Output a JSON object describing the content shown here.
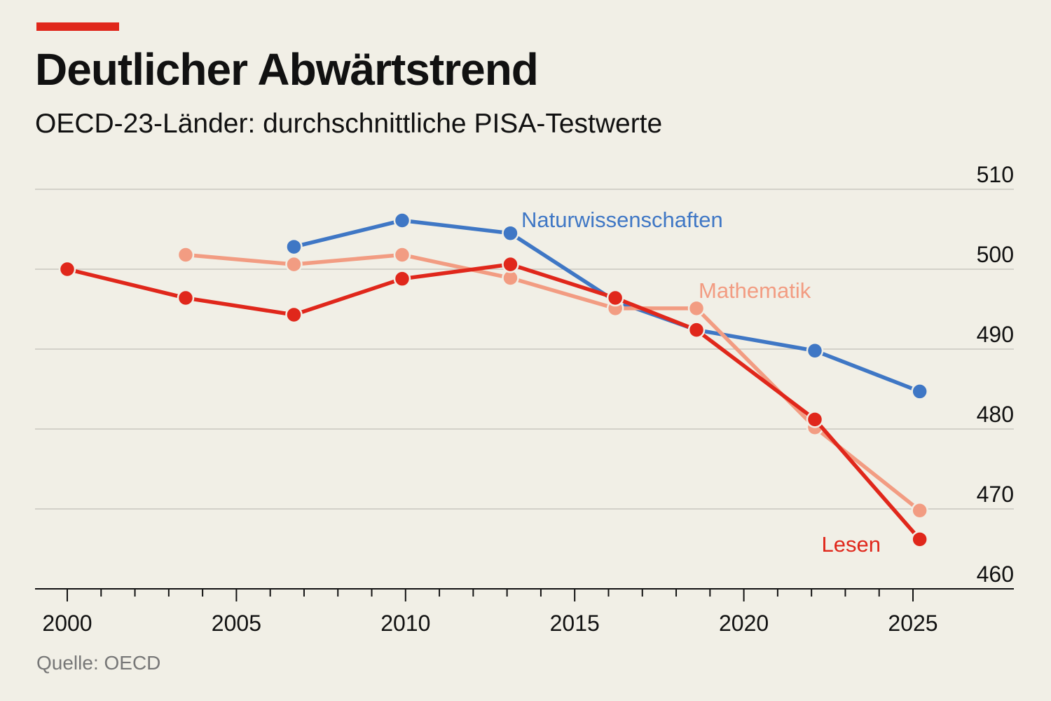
{
  "header": {
    "accent_color": "#e0271b",
    "title": "Deutlicher Abwärtstrend",
    "subtitle": "OECD-23-Länder: durchschnittliche PISA-Testwerte"
  },
  "footer": {
    "source": "Quelle: OECD"
  },
  "chart_data": {
    "type": "line",
    "title": "Deutlicher Abwärtstrend",
    "subtitle": "OECD-23-Länder: durchschnittliche PISA-Testwerte",
    "xlabel": "",
    "ylabel": "",
    "xlim": [
      1999,
      2026
    ],
    "ylim": [
      460,
      510
    ],
    "x_ticks": [
      2000,
      2005,
      2010,
      2015,
      2020,
      2025
    ],
    "y_ticks": [
      460,
      470,
      480,
      490,
      500,
      510
    ],
    "y_axis_side": "right",
    "grid": true,
    "legend": "inline",
    "series": [
      {
        "name": "Naturwissenschaften",
        "color": "#3f77c5",
        "x": [
          2006.7,
          2009.9,
          2013.1,
          2016.2,
          2018.6,
          2022.1,
          2025.2
        ],
        "y": [
          502.8,
          506.1,
          504.5,
          496.0,
          492.4,
          489.8,
          484.7
        ]
      },
      {
        "name": "Mathematik",
        "color": "#f29c82",
        "x": [
          2003.5,
          2006.7,
          2009.9,
          2013.1,
          2016.2,
          2018.6,
          2022.1,
          2025.2
        ],
        "y": [
          501.8,
          500.6,
          501.8,
          498.9,
          495.1,
          495.1,
          480.2,
          469.8
        ]
      },
      {
        "name": "Lesen",
        "color": "#e0271b",
        "x": [
          2000,
          2003.5,
          2006.7,
          2009.9,
          2013.1,
          2016.2,
          2018.6,
          2022.1,
          2025.2
        ],
        "y": [
          500.0,
          496.4,
          494.3,
          498.8,
          500.6,
          496.4,
          492.4,
          481.2,
          466.2
        ]
      }
    ]
  }
}
